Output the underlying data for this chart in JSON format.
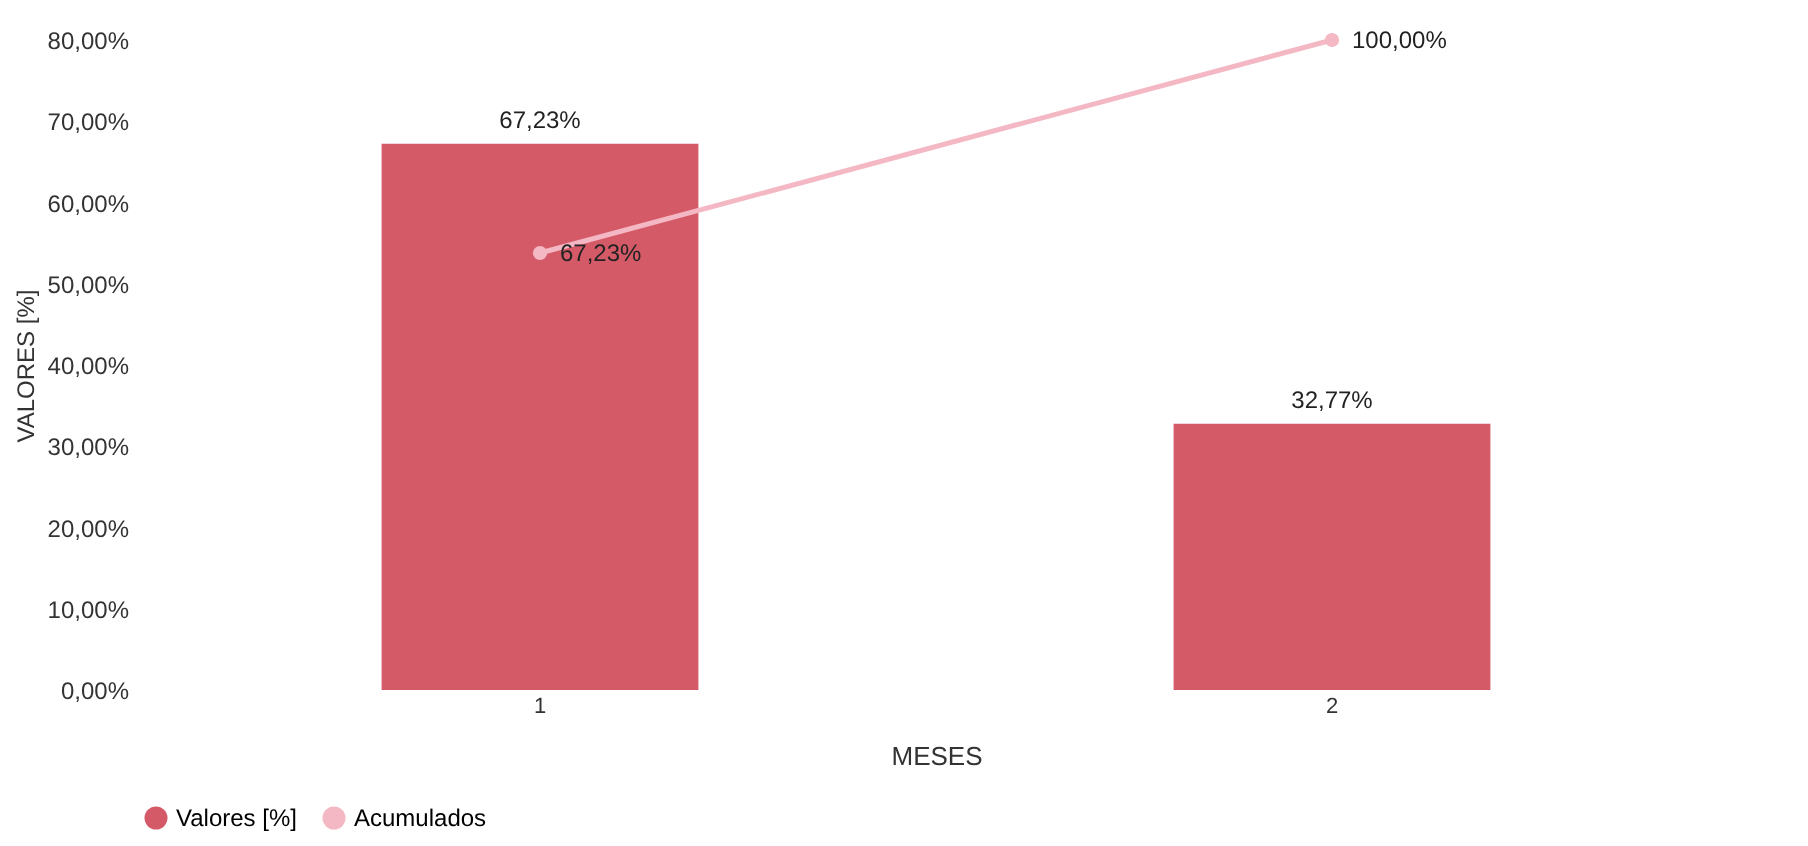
{
  "chart_data": {
    "type": "bar",
    "xlabel": "MESES",
    "ylabel": "VALORES [%]",
    "categories": [
      "1",
      "2"
    ],
    "series": [
      {
        "name": "Valores [%]",
        "color": "#d45a68",
        "values": [
          67.23,
          32.77
        ],
        "value_labels": [
          "67,23%",
          "32,77%"
        ]
      },
      {
        "name": "Acumulados",
        "type": "line",
        "axis": "y2",
        "color": "#f4b8c4",
        "marker": "circle",
        "values": [
          67.23,
          100
        ],
        "value_labels": [
          "67,23%",
          "100,00%"
        ]
      }
    ],
    "ylim": [
      0,
      80
    ],
    "yticks": [
      {
        "value": 0,
        "label": "0,00%"
      },
      {
        "value": 10,
        "label": "10,00%"
      },
      {
        "value": 20,
        "label": "20,00%"
      },
      {
        "value": 30,
        "label": "30,00%"
      },
      {
        "value": 40,
        "label": "40,00%"
      },
      {
        "value": 50,
        "label": "50,00%"
      },
      {
        "value": 60,
        "label": "60,00%"
      },
      {
        "value": 70,
        "label": "70,00%"
      },
      {
        "value": 80,
        "label": "80,00%"
      }
    ],
    "legend": "bottom"
  }
}
